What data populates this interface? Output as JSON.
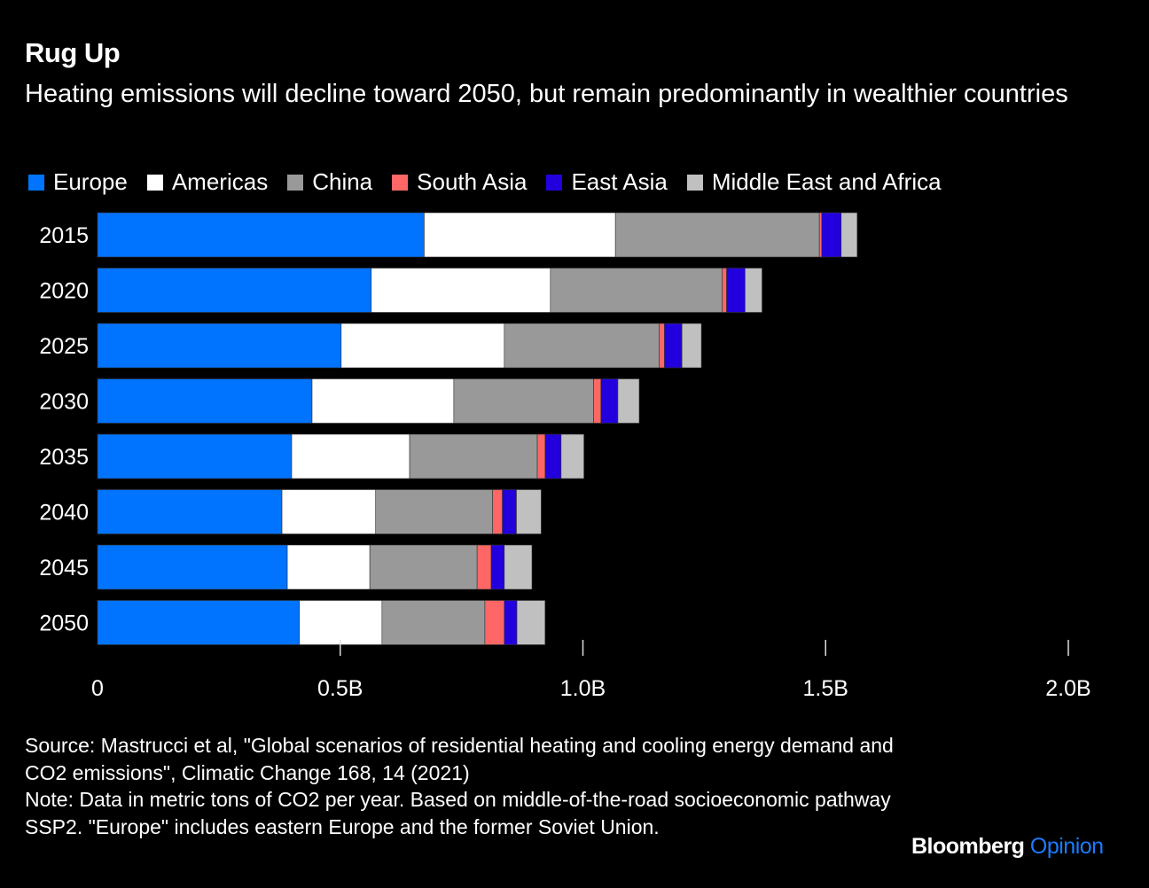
{
  "header": {
    "title": "Rug Up",
    "subtitle": "Heating emissions will decline toward 2050, but remain predominantly in wealthier countries"
  },
  "legend": [
    {
      "label": "Europe",
      "color": "#0073ff"
    },
    {
      "label": "Americas",
      "color": "#ffffff"
    },
    {
      "label": "China",
      "color": "#999999"
    },
    {
      "label": "South Asia",
      "color": "#ff6666"
    },
    {
      "label": "East Asia",
      "color": "#2200dd"
    },
    {
      "label": "Middle East and Africa",
      "color": "#c0c0c0"
    }
  ],
  "chart_data": {
    "type": "bar",
    "orientation": "horizontal",
    "stacked": true,
    "title": "Rug Up",
    "subtitle": "Heating emissions will decline toward 2050, but remain predominantly in wealthier countries",
    "xlabel": "",
    "ylabel": "",
    "unit": "metric tons of CO2 per year (billions)",
    "xlim": [
      0,
      2.0
    ],
    "x_ticks": [
      0,
      0.5,
      1.0,
      1.5,
      2.0
    ],
    "x_tick_labels": [
      "0",
      "0.5B",
      "1.0B",
      "1.5B",
      "2.0B"
    ],
    "grid": false,
    "legend_position": "top",
    "categories": [
      "2015",
      "2020",
      "2025",
      "2030",
      "2035",
      "2040",
      "2045",
      "2050"
    ],
    "series": [
      {
        "name": "Europe",
        "color": "#0073ff",
        "values": [
          0.673,
          0.564,
          0.502,
          0.442,
          0.4,
          0.38,
          0.391,
          0.416
        ]
      },
      {
        "name": "Americas",
        "color": "#ffffff",
        "values": [
          0.394,
          0.369,
          0.336,
          0.292,
          0.243,
          0.193,
          0.17,
          0.17
        ]
      },
      {
        "name": "China",
        "color": "#999999",
        "values": [
          0.42,
          0.354,
          0.319,
          0.288,
          0.263,
          0.241,
          0.221,
          0.212
        ]
      },
      {
        "name": "South Asia",
        "color": "#ff6666",
        "values": [
          0.005,
          0.009,
          0.011,
          0.015,
          0.016,
          0.02,
          0.029,
          0.04
        ]
      },
      {
        "name": "East Asia",
        "color": "#2200dd",
        "values": [
          0.04,
          0.038,
          0.036,
          0.035,
          0.033,
          0.029,
          0.027,
          0.026
        ]
      },
      {
        "name": "Middle East and Africa",
        "color": "#c0c0c0",
        "values": [
          0.033,
          0.035,
          0.04,
          0.044,
          0.047,
          0.051,
          0.057,
          0.058
        ]
      }
    ]
  },
  "footer": {
    "source": "Source: Mastrucci et al, \"Global scenarios of residential heating and cooling energy demand and CO2 emissions\", Climatic Change 168, 14 (2021)",
    "note": "Note: Data in metric tons of CO2 per year. Based on middle-of-the-road socioeconomic pathway SSP2. \"Europe\" includes eastern Europe and the former Soviet Union."
  },
  "brand": {
    "name": "Bloomberg",
    "section": "Opinion"
  }
}
